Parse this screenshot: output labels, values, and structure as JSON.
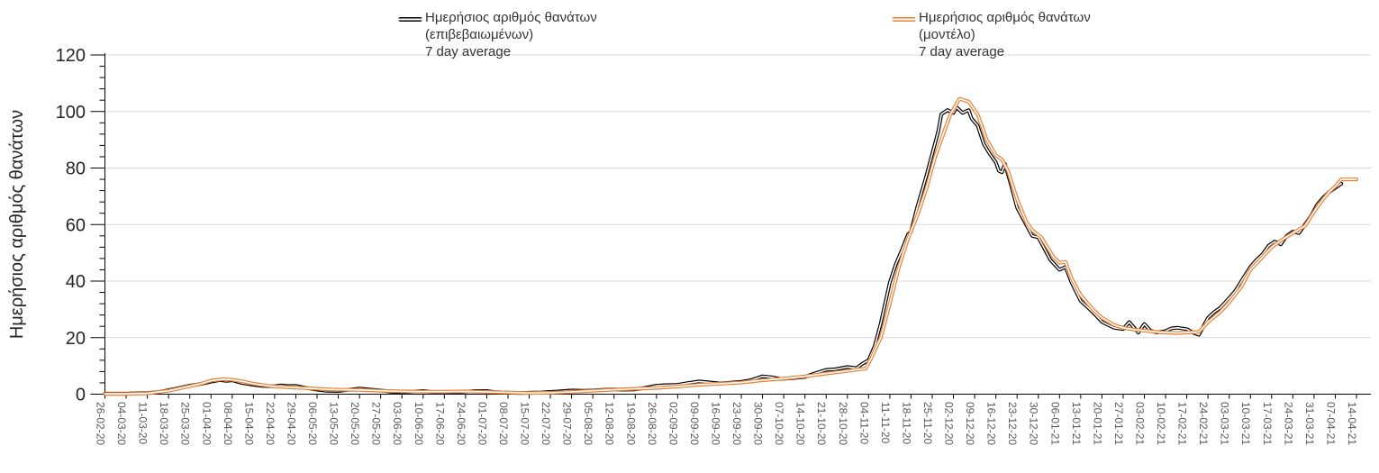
{
  "style": {
    "background": "#ffffff",
    "grid_color": "#d9d9d9",
    "axis_color": "#000000",
    "x_tick_label_color": "#595959",
    "y_tick_label_color": "#262626",
    "series_confirmed_color": "#000000",
    "series_model_color": "#ed7d31",
    "tube_core_color": "#ffffff"
  },
  "y_axis": {
    "title": "Ημερήσιος αριθμός θανάτων",
    "ticks": [
      0,
      20,
      40,
      60,
      80,
      100,
      120
    ],
    "min": 0,
    "max": 120,
    "major_unit": 20,
    "minor_unit": 4
  },
  "legend": {
    "confirmed": {
      "lines": [
        "Ημερήσιος αριθμός θανάτων",
        "(επιβεβαιωμένων)",
        "7 day average"
      ],
      "color": "#000000"
    },
    "model": {
      "lines": [
        "Ημερήσιος αριθμός θανάτων",
        "(μοντέλο)",
        "7 day average"
      ],
      "color": "#ed7d31"
    }
  },
  "chart_data": {
    "type": "line",
    "title": "",
    "xlabel": "",
    "ylabel": "Ημερήσιος αριθμός θανάτων",
    "ylim": [
      0,
      120
    ],
    "grid": "horizontal",
    "legend_position": "top",
    "x_label_interval_days": 7,
    "x_labels": [
      "26-02-20",
      "04-03-20",
      "11-03-20",
      "18-03-20",
      "25-03-20",
      "01-04-20",
      "08-04-20",
      "15-04-20",
      "22-04-20",
      "29-04-20",
      "06-05-20",
      "13-05-20",
      "20-05-20",
      "27-05-20",
      "03-06-20",
      "10-06-20",
      "17-06-20",
      "24-06-20",
      "01-07-20",
      "08-07-20",
      "15-07-20",
      "22-07-20",
      "29-07-20",
      "05-08-20",
      "12-08-20",
      "19-08-20",
      "26-08-20",
      "02-09-20",
      "09-09-20",
      "16-09-20",
      "23-09-20",
      "30-09-20",
      "07-10-20",
      "14-10-20",
      "21-10-20",
      "28-10-20",
      "04-11-20",
      "11-11-20",
      "18-11-20",
      "25-11-20",
      "02-12-20",
      "09-12-20",
      "16-12-20",
      "23-12-20",
      "30-12-20",
      "06-01-21",
      "13-01-21",
      "20-01-21",
      "27-01-21",
      "03-02-21",
      "10-02-21",
      "17-02-21",
      "24-02-21",
      "03-03-21",
      "10-03-21",
      "17-03-21",
      "24-03-21",
      "31-03-21",
      "07-04-21",
      "14-04-21"
    ],
    "series": [
      {
        "name": "Ημερήσιος αριθμός θανάτων (επιβεβαιωμένων) 7 day average",
        "color": "#000000",
        "line_style": "tube",
        "points": [
          [
            0,
            0.2
          ],
          [
            7,
            0.2
          ],
          [
            14,
            0.4
          ],
          [
            18,
            0.8
          ],
          [
            21,
            1.4
          ],
          [
            25,
            2.3
          ],
          [
            28,
            3.0
          ],
          [
            32,
            3.7
          ],
          [
            35,
            4.4
          ],
          [
            38,
            5.0
          ],
          [
            40,
            4.7
          ],
          [
            42,
            4.9
          ],
          [
            45,
            4.0
          ],
          [
            49,
            3.3
          ],
          [
            52,
            2.9
          ],
          [
            56,
            2.8
          ],
          [
            58,
            3.1
          ],
          [
            60,
            2.9
          ],
          [
            63,
            2.9
          ],
          [
            66,
            2.3
          ],
          [
            70,
            1.6
          ],
          [
            73,
            1.2
          ],
          [
            77,
            1.1
          ],
          [
            80,
            1.5
          ],
          [
            84,
            2.0
          ],
          [
            87,
            1.7
          ],
          [
            91,
            1.3
          ],
          [
            94,
            0.9
          ],
          [
            98,
            0.7
          ],
          [
            101,
            0.9
          ],
          [
            105,
            1.1
          ],
          [
            108,
            0.8
          ],
          [
            112,
            0.6
          ],
          [
            116,
            0.7
          ],
          [
            119,
            0.9
          ],
          [
            122,
            1.1
          ],
          [
            126,
            1.1
          ],
          [
            129,
            0.7
          ],
          [
            133,
            0.5
          ],
          [
            137,
            0.4
          ],
          [
            140,
            0.5
          ],
          [
            144,
            0.6
          ],
          [
            147,
            0.8
          ],
          [
            150,
            1.0
          ],
          [
            154,
            1.3
          ],
          [
            158,
            1.2
          ],
          [
            161,
            1.3
          ],
          [
            164,
            1.5
          ],
          [
            168,
            1.7
          ],
          [
            171,
            1.6
          ],
          [
            175,
            1.7
          ],
          [
            178,
            2.2
          ],
          [
            182,
            3.0
          ],
          [
            185,
            3.2
          ],
          [
            189,
            3.3
          ],
          [
            192,
            3.9
          ],
          [
            196,
            4.5
          ],
          [
            199,
            4.2
          ],
          [
            203,
            3.8
          ],
          [
            206,
            4.0
          ],
          [
            210,
            4.4
          ],
          [
            213,
            4.9
          ],
          [
            217,
            6.3
          ],
          [
            220,
            6.0
          ],
          [
            223,
            5.4
          ],
          [
            227,
            5.7
          ],
          [
            231,
            6.1
          ],
          [
            234,
            7.3
          ],
          [
            238,
            8.6
          ],
          [
            241,
            8.8
          ],
          [
            245,
            9.6
          ],
          [
            248,
            9.2
          ],
          [
            250,
            10.8
          ],
          [
            252,
            12.0
          ],
          [
            254,
            17.0
          ],
          [
            256,
            25.0
          ],
          [
            259,
            39.5
          ],
          [
            261,
            46.0
          ],
          [
            263,
            51.0
          ],
          [
            265,
            56.5
          ],
          [
            266,
            57.5
          ],
          [
            268,
            66.0
          ],
          [
            271,
            77.0
          ],
          [
            273,
            85.0
          ],
          [
            275,
            93.0
          ],
          [
            276,
            99.0
          ],
          [
            278,
            100.5
          ],
          [
            280,
            99.5
          ],
          [
            281,
            101.5
          ],
          [
            283,
            99.5
          ],
          [
            285,
            100.5
          ],
          [
            286,
            97.5
          ],
          [
            288,
            95.0
          ],
          [
            290,
            88.5
          ],
          [
            292,
            85.0
          ],
          [
            294,
            82.0
          ],
          [
            295,
            79.0
          ],
          [
            296,
            78.5
          ],
          [
            297,
            81.5
          ],
          [
            299,
            74.0
          ],
          [
            301,
            66.0
          ],
          [
            304,
            60.0
          ],
          [
            306,
            56.0
          ],
          [
            308,
            55.5
          ],
          [
            310,
            51.5
          ],
          [
            312,
            47.5
          ],
          [
            315,
            44.0
          ],
          [
            317,
            45.0
          ],
          [
            319,
            39.5
          ],
          [
            322,
            33.0
          ],
          [
            324,
            31.0
          ],
          [
            326,
            29.0
          ],
          [
            329,
            25.6
          ],
          [
            331,
            24.5
          ],
          [
            333,
            23.5
          ],
          [
            336,
            23.0
          ],
          [
            338,
            25.5
          ],
          [
            341,
            21.8
          ],
          [
            343,
            24.8
          ],
          [
            345,
            22.5
          ],
          [
            347,
            21.8
          ],
          [
            350,
            22.3
          ],
          [
            352,
            23.3
          ],
          [
            354,
            23.5
          ],
          [
            357,
            23.0
          ],
          [
            359,
            21.8
          ],
          [
            361,
            21.0
          ],
          [
            364,
            27.0
          ],
          [
            366,
            29.0
          ],
          [
            368,
            30.5
          ],
          [
            371,
            34.0
          ],
          [
            373,
            36.5
          ],
          [
            375,
            40.0
          ],
          [
            378,
            45.0
          ],
          [
            380,
            47.5
          ],
          [
            382,
            49.5
          ],
          [
            384,
            52.5
          ],
          [
            386,
            54.0
          ],
          [
            388,
            53.0
          ],
          [
            390,
            56.0
          ],
          [
            392,
            57.5
          ],
          [
            394,
            57.0
          ],
          [
            396,
            60.0
          ],
          [
            398,
            63.0
          ],
          [
            400,
            67.0
          ],
          [
            402,
            69.5
          ],
          [
            404,
            71.5
          ],
          [
            406,
            73.0
          ],
          [
            408,
            74.5
          ]
        ]
      },
      {
        "name": "Ημερήσιος αριθμός θανάτων (μοντέλο) 7 day average",
        "color": "#ed7d31",
        "line_style": "tube",
        "points": [
          [
            0,
            0.1
          ],
          [
            7,
            0.1
          ],
          [
            14,
            0.3
          ],
          [
            21,
            1.2
          ],
          [
            28,
            2.8
          ],
          [
            32,
            3.8
          ],
          [
            35,
            4.8
          ],
          [
            39,
            5.3
          ],
          [
            42,
            5.1
          ],
          [
            46,
            4.4
          ],
          [
            49,
            3.7
          ],
          [
            53,
            3.1
          ],
          [
            56,
            2.7
          ],
          [
            60,
            2.5
          ],
          [
            63,
            2.3
          ],
          [
            67,
            2.1
          ],
          [
            70,
            1.9
          ],
          [
            74,
            1.7
          ],
          [
            77,
            1.6
          ],
          [
            84,
            1.5
          ],
          [
            91,
            1.2
          ],
          [
            98,
            1.0
          ],
          [
            105,
            0.9
          ],
          [
            112,
            0.9
          ],
          [
            119,
            1.0
          ],
          [
            126,
            0.8
          ],
          [
            133,
            0.6
          ],
          [
            140,
            0.4
          ],
          [
            147,
            0.5
          ],
          [
            154,
            0.8
          ],
          [
            161,
            1.2
          ],
          [
            168,
            1.6
          ],
          [
            175,
            1.9
          ],
          [
            182,
            2.2
          ],
          [
            189,
            2.7
          ],
          [
            196,
            3.3
          ],
          [
            203,
            3.7
          ],
          [
            210,
            4.1
          ],
          [
            217,
            4.9
          ],
          [
            224,
            5.5
          ],
          [
            231,
            6.3
          ],
          [
            238,
            7.3
          ],
          [
            245,
            8.2
          ],
          [
            249,
            8.8
          ],
          [
            251,
            9.0
          ],
          [
            253,
            13.0
          ],
          [
            256,
            20.0
          ],
          [
            259,
            32.0
          ],
          [
            262,
            45.0
          ],
          [
            265,
            55.0
          ],
          [
            268,
            63.0
          ],
          [
            271,
            72.5
          ],
          [
            274,
            84.0
          ],
          [
            277,
            93.0
          ],
          [
            279,
            99.0
          ],
          [
            282,
            104.5
          ],
          [
            285,
            103.5
          ],
          [
            288,
            99.0
          ],
          [
            291,
            90.0
          ],
          [
            294,
            84.5
          ],
          [
            296,
            83.0
          ],
          [
            298,
            79.0
          ],
          [
            301,
            69.0
          ],
          [
            304,
            61.0
          ],
          [
            306,
            58.0
          ],
          [
            309,
            55.5
          ],
          [
            311,
            52.0
          ],
          [
            313,
            48.5
          ],
          [
            315,
            46.5
          ],
          [
            317,
            46.8
          ],
          [
            319,
            41.0
          ],
          [
            322,
            35.0
          ],
          [
            326,
            30.0
          ],
          [
            329,
            27.0
          ],
          [
            333,
            24.5
          ],
          [
            336,
            23.5
          ],
          [
            340,
            22.8
          ],
          [
            343,
            22.5
          ],
          [
            347,
            22.0
          ],
          [
            350,
            21.8
          ],
          [
            354,
            21.6
          ],
          [
            357,
            21.8
          ],
          [
            361,
            22.0
          ],
          [
            364,
            25.5
          ],
          [
            368,
            29.0
          ],
          [
            371,
            32.5
          ],
          [
            375,
            38.0
          ],
          [
            378,
            44.0
          ],
          [
            382,
            48.5
          ],
          [
            385,
            52.0
          ],
          [
            389,
            55.0
          ],
          [
            392,
            57.0
          ],
          [
            396,
            59.5
          ],
          [
            399,
            64.5
          ],
          [
            402,
            69.0
          ],
          [
            404,
            71.5
          ],
          [
            406,
            73.5
          ],
          [
            408,
            76.0
          ],
          [
            413,
            76.0
          ]
        ]
      }
    ]
  }
}
